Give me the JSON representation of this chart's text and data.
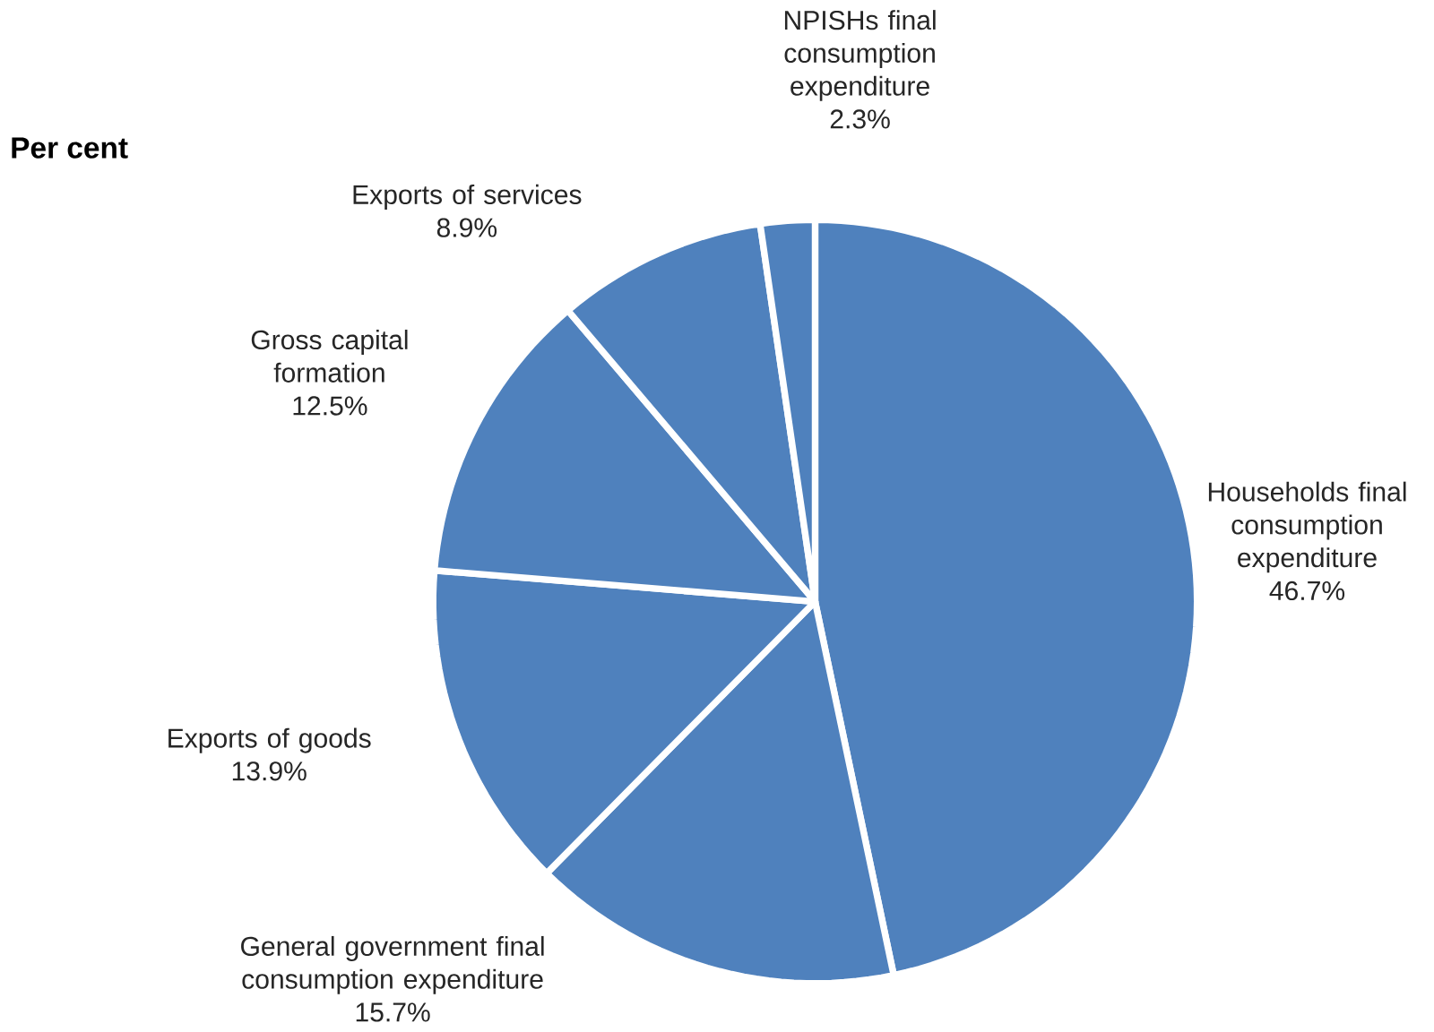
{
  "chart_data": {
    "type": "pie",
    "title": "Per cent",
    "categories": [
      "Households final consumption expenditure",
      "General government final consumption expenditure",
      "Exports of goods",
      "Gross capital formation",
      "Exports of services",
      "NPISHs final consumption expenditure"
    ],
    "values": [
      46.7,
      15.7,
      13.9,
      12.5,
      8.9,
      2.3
    ],
    "value_labels": [
      "46.7%",
      "15.7%",
      "13.9%",
      "12.5%",
      "8.9%",
      "2.3%"
    ],
    "colors": [
      "#4f81bd",
      "#4f81bd",
      "#4f81bd",
      "#4f81bd",
      "#4f81bd",
      "#4f81bd"
    ]
  }
}
